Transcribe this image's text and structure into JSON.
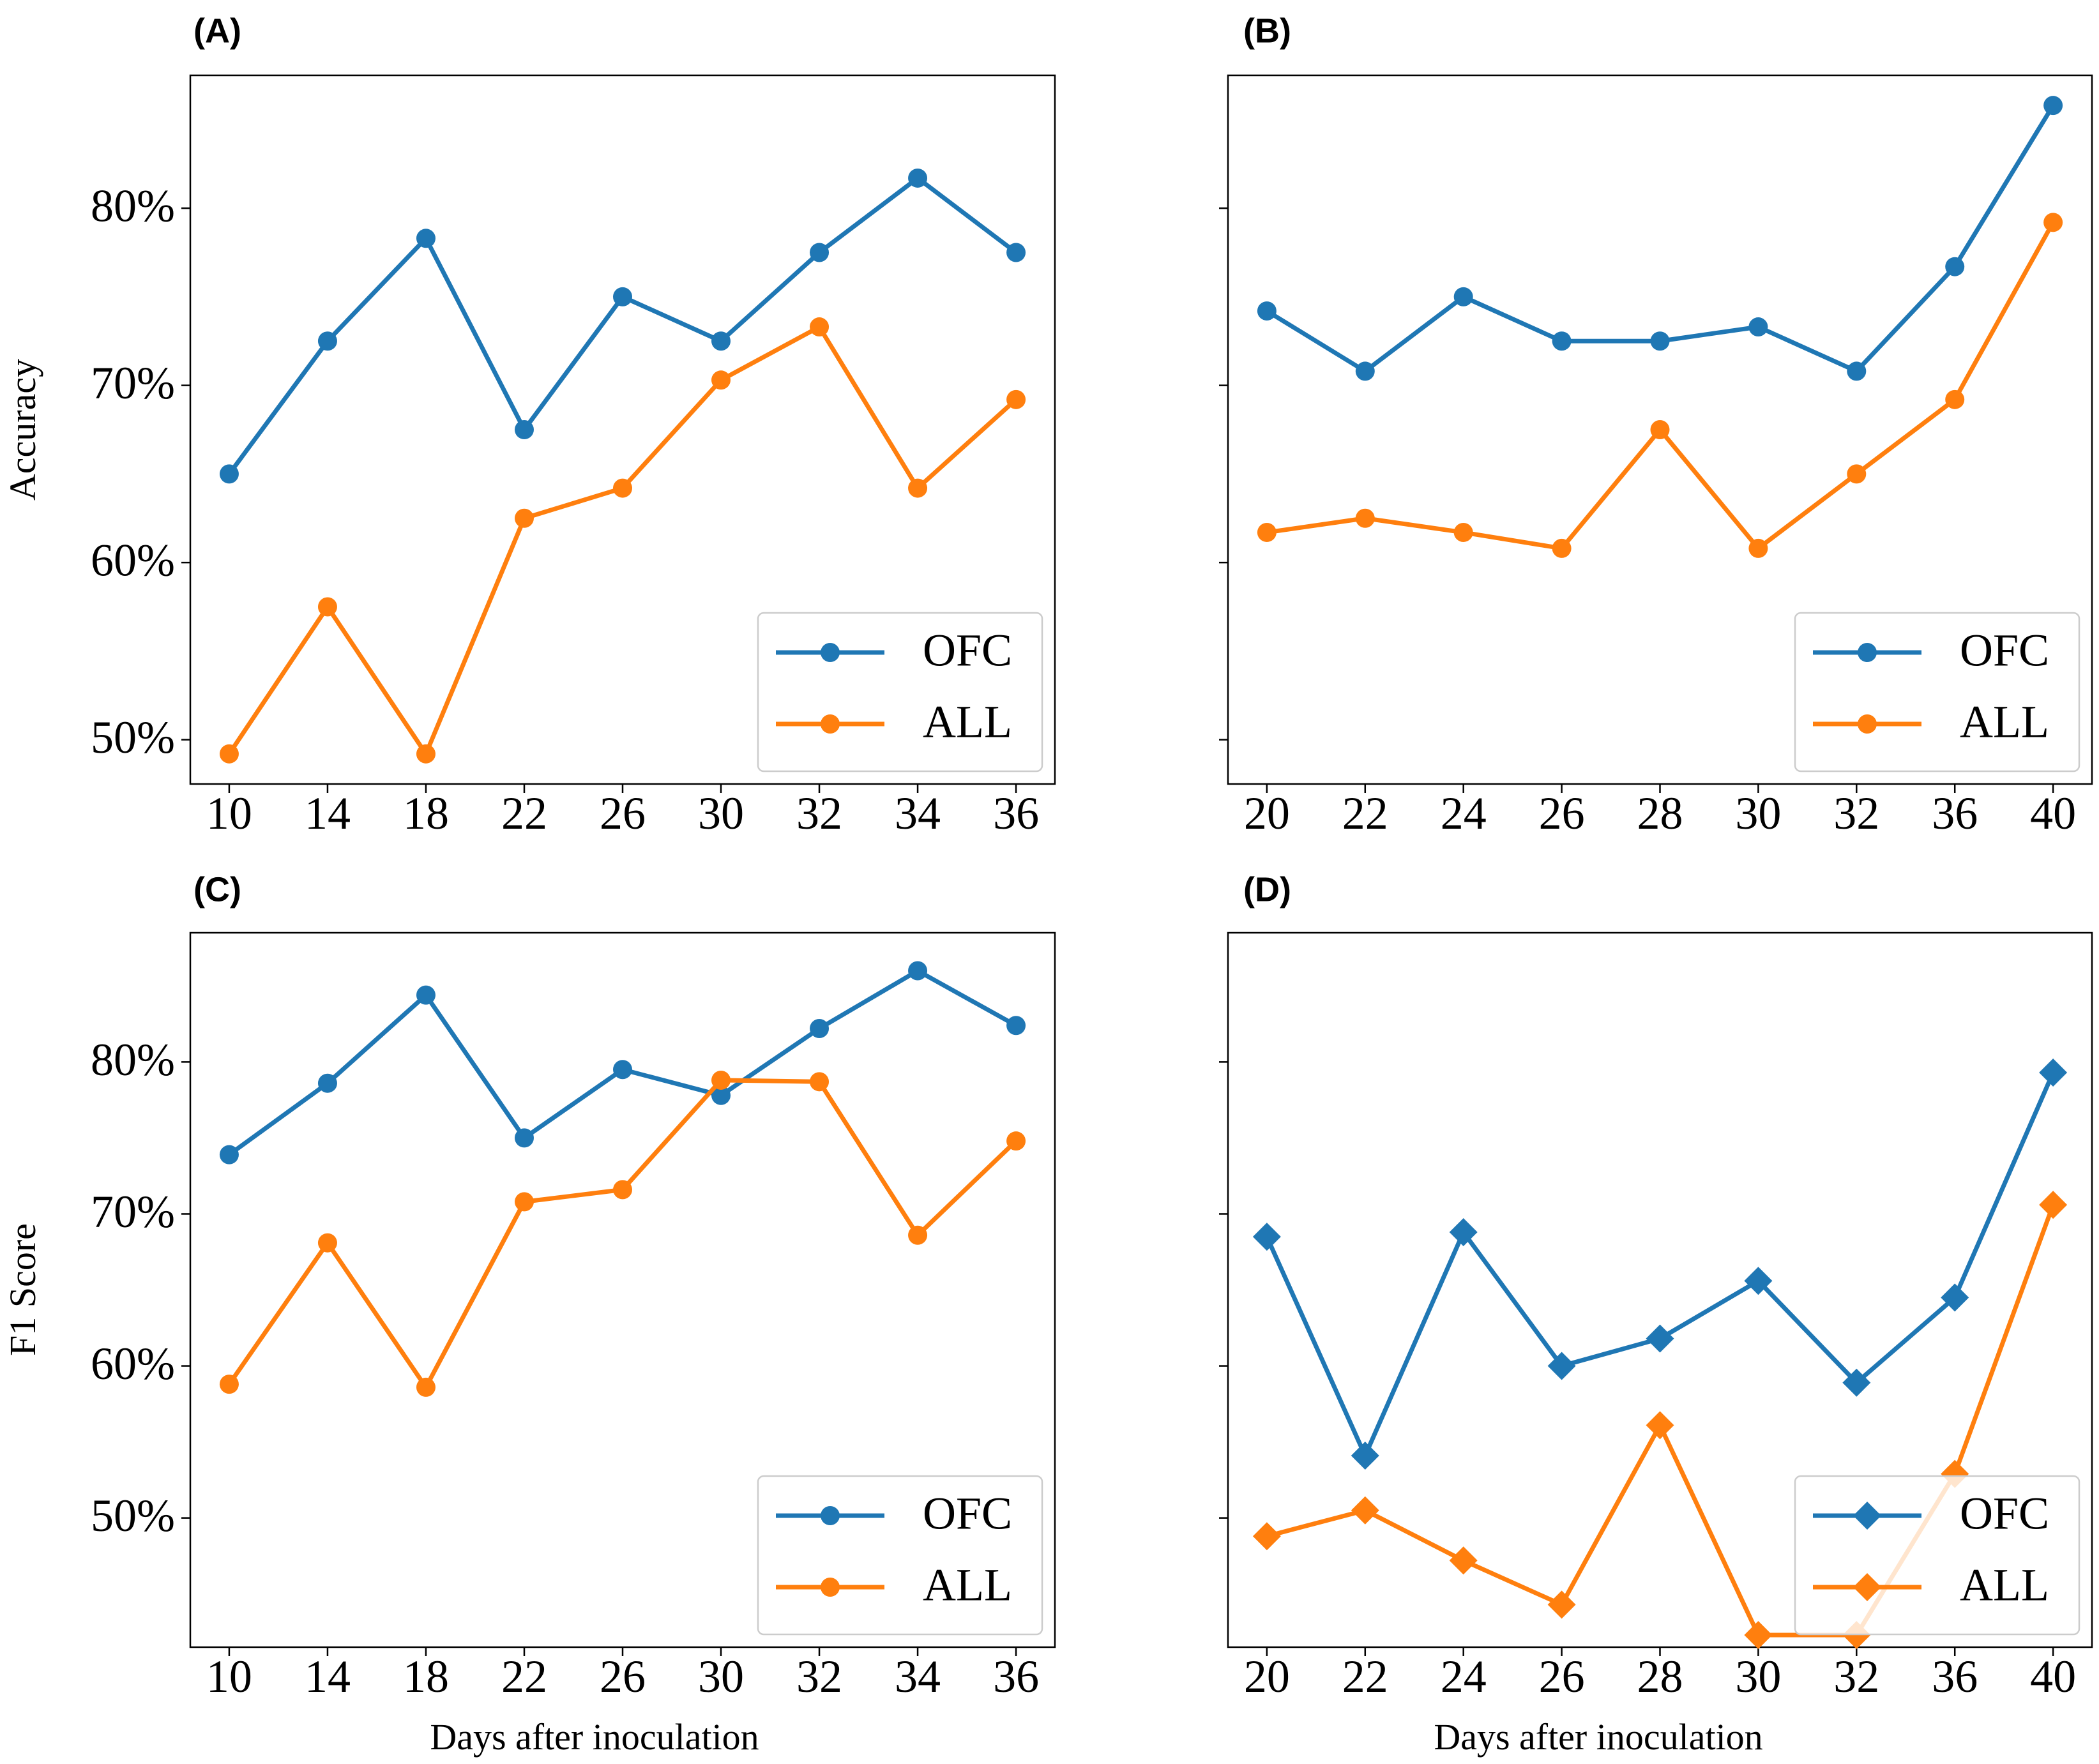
{
  "colors": {
    "ofc": "#1f77b4",
    "all": "#ff7f0e"
  },
  "chart_data": [
    {
      "type": "line",
      "panel": "(A)",
      "ylabel": "Accuracy",
      "xlabel": "",
      "ylim": [
        47.5,
        87.5
      ],
      "yticks": [
        "50%",
        "60%",
        "70%",
        "80%"
      ],
      "ytick_values": [
        50,
        60,
        70,
        80
      ],
      "show_ytick_labels": true,
      "categories": [
        "10",
        "14",
        "18",
        "22",
        "26",
        "30",
        "32",
        "34",
        "36"
      ],
      "marker": "circle",
      "legend_position": "lower-right",
      "series": [
        {
          "name": "OFC",
          "values": [
            65.0,
            72.5,
            78.3,
            67.5,
            75.0,
            72.5,
            77.5,
            81.7,
            77.5
          ]
        },
        {
          "name": "ALL",
          "values": [
            49.2,
            57.5,
            49.2,
            62.5,
            64.2,
            70.3,
            73.3,
            64.2,
            69.2
          ]
        }
      ]
    },
    {
      "type": "line",
      "panel": "(B)",
      "ylabel": "",
      "xlabel": "",
      "ylim": [
        47.5,
        87.5
      ],
      "yticks": [],
      "ytick_values": [
        50,
        60,
        70,
        80
      ],
      "show_ytick_labels": false,
      "categories": [
        "20",
        "22",
        "24",
        "26",
        "28",
        "30",
        "32",
        "36",
        "40"
      ],
      "marker": "circle",
      "legend_position": "lower-right",
      "series": [
        {
          "name": "OFC",
          "values": [
            74.2,
            70.8,
            75.0,
            72.5,
            72.5,
            73.3,
            70.8,
            76.7,
            85.8
          ]
        },
        {
          "name": "ALL",
          "values": [
            61.7,
            62.5,
            61.7,
            60.8,
            67.5,
            60.8,
            65.0,
            69.2,
            79.2
          ]
        }
      ]
    },
    {
      "type": "line",
      "panel": "(C)",
      "ylabel": "F1 Score",
      "xlabel": "Days after inoculation",
      "ylim": [
        41.5,
        88.5
      ],
      "yticks": [
        "50%",
        "60%",
        "70%",
        "80%"
      ],
      "ytick_values": [
        50,
        60,
        70,
        80
      ],
      "show_ytick_labels": true,
      "categories": [
        "10",
        "14",
        "18",
        "22",
        "26",
        "30",
        "32",
        "34",
        "36"
      ],
      "marker": "circle",
      "legend_position": "lower-right",
      "series": [
        {
          "name": "OFC",
          "values": [
            73.9,
            78.6,
            84.4,
            75.0,
            79.5,
            77.8,
            82.2,
            86.0,
            82.4
          ]
        },
        {
          "name": "ALL",
          "values": [
            58.8,
            68.1,
            58.6,
            70.8,
            71.6,
            78.8,
            78.7,
            68.6,
            74.8
          ]
        }
      ]
    },
    {
      "type": "line",
      "panel": "(D)",
      "ylabel": "",
      "xlabel": "Days after inoculation",
      "ylim": [
        41.5,
        88.5
      ],
      "yticks": [],
      "ytick_values": [
        50,
        60,
        70,
        80
      ],
      "show_ytick_labels": false,
      "categories": [
        "20",
        "22",
        "24",
        "26",
        "28",
        "30",
        "32",
        "36",
        "40"
      ],
      "marker": "diamond",
      "legend_position": "lower-right",
      "series": [
        {
          "name": "OFC",
          "values": [
            68.5,
            54.1,
            68.8,
            60.0,
            61.8,
            65.6,
            58.9,
            64.5,
            79.3
          ]
        },
        {
          "name": "ALL",
          "values": [
            48.8,
            50.5,
            47.2,
            44.3,
            56.1,
            42.3,
            42.3,
            52.9,
            70.6
          ]
        }
      ]
    }
  ]
}
